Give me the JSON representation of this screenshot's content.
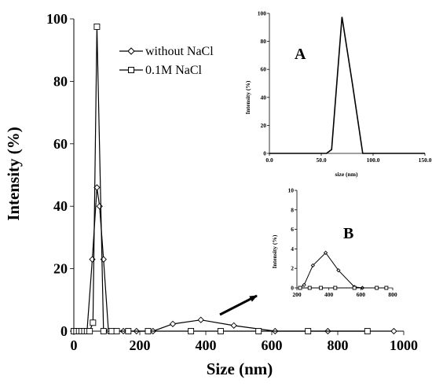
{
  "chart_data": [
    {
      "id": "main",
      "type": "line",
      "xlabel": "Size (nm)",
      "ylabel": "Intensity (%)",
      "xlim": [
        0,
        1000
      ],
      "ylim": [
        0,
        100
      ],
      "xticks": [
        0,
        200,
        400,
        600,
        800,
        1000
      ],
      "yticks": [
        0,
        20,
        40,
        60,
        80,
        100
      ],
      "legend_position": "top-center",
      "series": [
        {
          "name": "without NaCl",
          "marker": "diamond",
          "x": [
            0,
            8,
            16,
            24,
            32,
            40,
            56,
            70,
            78,
            90,
            105,
            120,
            150,
            190,
            240,
            300,
            385,
            485,
            610,
            770,
            970
          ],
          "y": [
            0,
            0,
            0,
            0,
            0,
            0,
            23,
            46,
            40,
            23,
            0,
            0,
            0,
            0,
            0,
            2.3,
            3.6,
            1.8,
            0,
            0,
            0
          ]
        },
        {
          "name": "0.1M NaCl",
          "marker": "square",
          "x": [
            0,
            8,
            16,
            24,
            32,
            40,
            48,
            58,
            70,
            90,
            115,
            130,
            165,
            225,
            355,
            445,
            560,
            710,
            890
          ],
          "y": [
            0,
            0,
            0,
            0,
            0,
            0,
            0,
            2.7,
            97.5,
            0,
            0,
            0,
            0,
            0,
            0,
            0,
            0,
            0,
            0
          ]
        }
      ]
    },
    {
      "id": "inset-A",
      "type": "line",
      "label": "A",
      "xlabel": "size (nm)",
      "ylabel": "Intensity (%)",
      "xlim": [
        0,
        150
      ],
      "ylim": [
        0,
        100
      ],
      "xticks": [
        0,
        50,
        100,
        150
      ],
      "xtick_labels": [
        "0.0",
        "50.0",
        "100.0",
        "150.0"
      ],
      "yticks": [
        0,
        20,
        40,
        60,
        80,
        100
      ],
      "series": [
        {
          "name": "0.1M NaCl",
          "x": [
            0,
            45,
            55,
            60,
            70,
            80,
            90,
            150
          ],
          "y": [
            0,
            0,
            0,
            2.7,
            97.5,
            50,
            0,
            0
          ]
        }
      ]
    },
    {
      "id": "inset-B",
      "type": "line",
      "label": "B",
      "xlabel": "",
      "ylabel": "Intensity (%)",
      "xlim": [
        200,
        800
      ],
      "ylim": [
        0,
        10
      ],
      "xticks": [
        200,
        400,
        600,
        800
      ],
      "yticks": [
        0,
        2,
        4,
        6,
        8,
        10
      ],
      "series": [
        {
          "name": "without NaCl",
          "marker": "diamond",
          "x": [
            220,
            245,
            300,
            380,
            460,
            560,
            610,
            700,
            760
          ],
          "y": [
            0,
            0.3,
            2.3,
            3.6,
            1.8,
            0.1,
            0,
            0,
            0
          ]
        },
        {
          "name": "0.1M NaCl",
          "marker": "square",
          "x": [
            220,
            280,
            350,
            440,
            560,
            700,
            760
          ],
          "y": [
            0,
            0,
            0,
            0,
            0,
            0,
            0
          ]
        }
      ]
    }
  ]
}
